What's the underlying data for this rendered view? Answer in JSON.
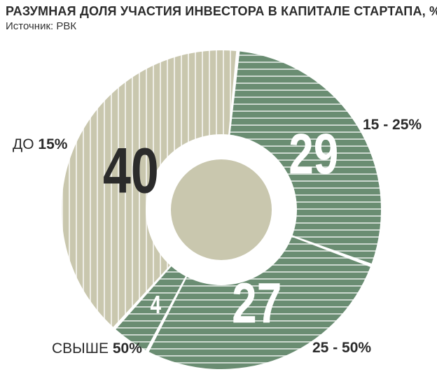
{
  "header": {
    "title": "РАЗУМНАЯ ДОЛЯ УЧАСТИЯ ИНВЕСТОРА В КАПИТАЛЕ СТАРТАПА, %",
    "source": "Источник: РВК"
  },
  "colors": {
    "green": "#6a8d72",
    "beige": "#c9c7ae",
    "stripe": "#ffffff",
    "text_dark": "#2b2b2b"
  },
  "chart_data": {
    "type": "pie",
    "title": "РАЗУМНАЯ ДОЛЯ УЧАСТИЯ ИНВЕСТОРА В КАПИТАЛЕ СТАРТАПА, %",
    "style": "donut",
    "slices": [
      {
        "category": "15 - 25%",
        "value": 29,
        "color": "#6a8d72",
        "stripes": "horizontal"
      },
      {
        "category": "25 - 50%",
        "value": 27,
        "color": "#6a8d72",
        "stripes": "horizontal"
      },
      {
        "category": "свыше 50%",
        "value": 4,
        "color": "#6a8d72",
        "stripes": "horizontal"
      },
      {
        "category": "до 15%",
        "value": 40,
        "color": "#c9c7ae",
        "stripes": "vertical"
      }
    ]
  },
  "labels": {
    "s15_25": "15 - 25%",
    "s25_50_num": "25 - 50%",
    "over50_word": "СВЫШЕ",
    "over50_num": "50%",
    "upto15_word": "ДО",
    "upto15_num": "15%"
  }
}
